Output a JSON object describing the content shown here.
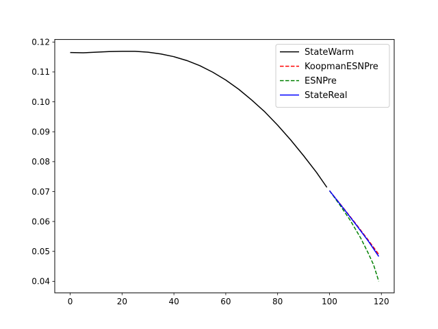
{
  "chart_data": {
    "type": "line",
    "title": "",
    "xlabel": "",
    "ylabel": "",
    "xlim": [
      -5.95,
      124.95
    ],
    "ylim": [
      0.03615,
      0.12085
    ],
    "xticks": [
      0,
      20,
      40,
      60,
      80,
      100,
      120
    ],
    "yticks": [
      0.04,
      0.05,
      0.06,
      0.07,
      0.08,
      0.09,
      0.1,
      0.11,
      0.12
    ],
    "ytick_labels": [
      "0.04",
      "0.05",
      "0.06",
      "0.07",
      "0.08",
      "0.09",
      "0.10",
      "0.11",
      "0.12"
    ],
    "grid": false,
    "legend_position": "upper right",
    "series": [
      {
        "name": "StateWarm",
        "color": "#000000",
        "dash": "solid",
        "x": [
          0,
          5,
          10,
          15,
          20,
          25,
          30,
          35,
          40,
          45,
          50,
          55,
          60,
          65,
          70,
          75,
          80,
          85,
          90,
          95,
          99
        ],
        "y": [
          0.1165,
          0.1164,
          0.1166,
          0.1168,
          0.1169,
          0.1169,
          0.1166,
          0.116,
          0.1151,
          0.1138,
          0.1121,
          0.1099,
          0.1073,
          0.1042,
          0.1006,
          0.0967,
          0.0922,
          0.0873,
          0.082,
          0.0764,
          0.0714
        ]
      },
      {
        "name": "KoopmanESNPre",
        "color": "#ff0000",
        "dash": "dashed",
        "x": [
          100,
          105,
          110,
          115,
          119
        ],
        "y": [
          0.0703,
          0.0649,
          0.0594,
          0.0537,
          0.049
        ]
      },
      {
        "name": "ESNPre",
        "color": "#008000",
        "dash": "dashed",
        "x": [
          100,
          104,
          108,
          112,
          115,
          117,
          119
        ],
        "y": [
          0.0703,
          0.0655,
          0.0604,
          0.0545,
          0.0493,
          0.0455,
          0.04
        ]
      },
      {
        "name": "StateReal",
        "color": "#0000ff",
        "dash": "solid",
        "x": [
          100,
          105,
          110,
          115,
          119
        ],
        "y": [
          0.0703,
          0.0648,
          0.0592,
          0.0534,
          0.0483
        ]
      }
    ]
  }
}
